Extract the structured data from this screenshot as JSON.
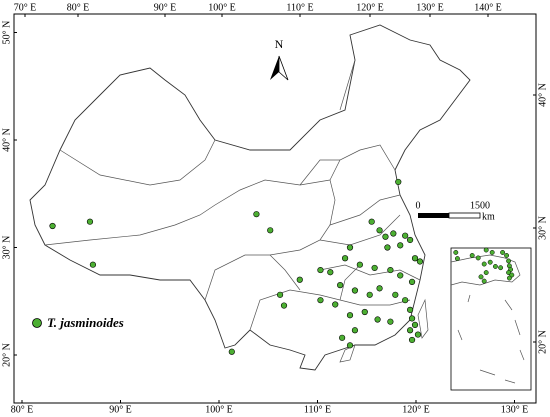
{
  "map": {
    "north": "N",
    "legend": "T. jasminoides",
    "scale_bar": {
      "ticks": [
        0,
        1500
      ],
      "unit": "km"
    },
    "axes": {
      "top": [
        {
          "value": 70,
          "label": "70° E"
        },
        {
          "value": 80,
          "label": "80° E"
        },
        {
          "value": 90,
          "label": "90° E"
        },
        {
          "value": 100,
          "label": "100° E"
        },
        {
          "value": 110,
          "label": "110° E"
        },
        {
          "value": 120,
          "label": "120° E"
        },
        {
          "value": 130,
          "label": "130° E"
        },
        {
          "value": 140,
          "label": "140° E"
        }
      ],
      "bottom": [
        {
          "value": 80,
          "label": "80° E"
        },
        {
          "value": 90,
          "label": "90° E"
        },
        {
          "value": 100,
          "label": "100° E"
        },
        {
          "value": 110,
          "label": "110° E"
        },
        {
          "value": 120,
          "label": "120° E"
        },
        {
          "value": 130,
          "label": "130° E"
        }
      ],
      "left": [
        {
          "value": 50,
          "label": "50° N"
        },
        {
          "value": 40,
          "label": "40° N"
        },
        {
          "value": 30,
          "label": "30° N"
        },
        {
          "value": 20,
          "label": "20° N"
        }
      ],
      "right": [
        {
          "value": 40,
          "label": "40° N"
        },
        {
          "value": 30,
          "label": "30° N"
        },
        {
          "value": 20,
          "label": "20° N"
        }
      ]
    },
    "points": {
      "lon": [
        83.1,
        86.9,
        87.2,
        103.8,
        105.2,
        118.2,
        115.5,
        116.3,
        116.9,
        117.7,
        118.4,
        118.9,
        119.4,
        119.9,
        120.4,
        117.1,
        113.3,
        112.8,
        114.3,
        115.8,
        117.4,
        118.4,
        119.6,
        111.3,
        110.3,
        108.2,
        112.3,
        113.8,
        115.3,
        116.3,
        117.9,
        118.9,
        119.4,
        119.6,
        119.9,
        119.4,
        120.2,
        119.6,
        106.6,
        110.3,
        111.8,
        113.3,
        114.8,
        116.1,
        117.4,
        113.8,
        112.5,
        113.3,
        101.3,
        106.2
      ],
      "lat": [
        32.0,
        32.4,
        28.4,
        33.1,
        31.6,
        36.1,
        32.4,
        31.6,
        31.0,
        31.3,
        30.2,
        31.1,
        30.7,
        29.0,
        28.7,
        30.0,
        30.0,
        29.0,
        28.4,
        28.1,
        27.9,
        27.4,
        26.8,
        27.7,
        27.9,
        27.0,
        26.5,
        26.0,
        25.6,
        26.2,
        25.6,
        25.1,
        24.2,
        23.4,
        22.8,
        22.3,
        21.9,
        21.4,
        24.6,
        25.1,
        24.7,
        23.7,
        24.0,
        23.3,
        23.1,
        22.3,
        21.6,
        20.9,
        20.3,
        25.6
      ]
    }
  }
}
